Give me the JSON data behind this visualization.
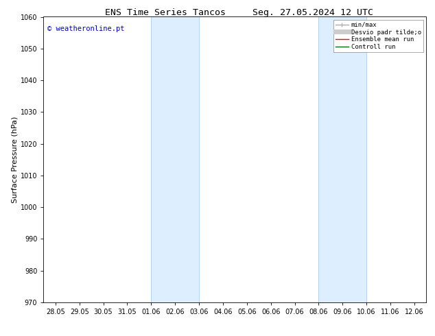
{
  "title_left": "ENS Time Series Tancos",
  "title_right": "Seg. 27.05.2024 12 UTC",
  "ylabel": "Surface Pressure (hPa)",
  "ylim": [
    970,
    1060
  ],
  "yticks": [
    970,
    980,
    990,
    1000,
    1010,
    1020,
    1030,
    1040,
    1050,
    1060
  ],
  "xtick_labels": [
    "28.05",
    "29.05",
    "30.05",
    "31.05",
    "01.06",
    "02.06",
    "03.06",
    "04.06",
    "05.06",
    "06.06",
    "07.06",
    "08.06",
    "09.06",
    "10.06",
    "11.06",
    "12.06"
  ],
  "watermark": "© weatheronline.pt",
  "watermark_color": "#0000cc",
  "shaded_bands": [
    {
      "xstart": 4,
      "xend": 6
    },
    {
      "xstart": 11,
      "xend": 13
    }
  ],
  "shaded_color": "#ddeeff",
  "shaded_edge_color": "#aaccee",
  "legend_entries": [
    {
      "label": "min/max",
      "color": "#aaaaaa"
    },
    {
      "label": "Desvio padr tilde;o",
      "color": "#cccccc"
    },
    {
      "label": "Ensemble mean run",
      "color": "#ff0000"
    },
    {
      "label": "Controll run",
      "color": "#006600"
    }
  ],
  "background_color": "#ffffff",
  "title_fontsize": 9.5,
  "tick_fontsize": 7,
  "ylabel_fontsize": 8,
  "watermark_fontsize": 7.5,
  "legend_fontsize": 6.5
}
